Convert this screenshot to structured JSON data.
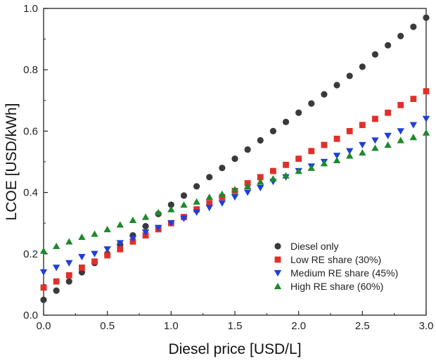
{
  "chart_data": {
    "type": "scatter",
    "xlabel": "Diesel price [USD/L]",
    "ylabel": "LCOE [USD/kWh]",
    "xlim": [
      0.0,
      3.0
    ],
    "ylim": [
      0.0,
      1.0
    ],
    "x_ticks": [
      "0.0",
      "0.5",
      "1.0",
      "1.5",
      "2.0",
      "2.5",
      "3.0"
    ],
    "y_ticks": [
      "0.0",
      "0.2",
      "0.4",
      "0.6",
      "0.8",
      "1.0"
    ],
    "grid": false,
    "legend_position": "bottom-right",
    "x": [
      0.0,
      0.1,
      0.2,
      0.3,
      0.4,
      0.5,
      0.6,
      0.7,
      0.8,
      0.9,
      1.0,
      1.1,
      1.2,
      1.3,
      1.4,
      1.5,
      1.6,
      1.7,
      1.8,
      1.9,
      2.0,
      2.1,
      2.2,
      2.3,
      2.4,
      2.5,
      2.6,
      2.7,
      2.8,
      2.9,
      3.0
    ],
    "series": [
      {
        "name": "Diesel only",
        "marker": "circle",
        "color": "#3a3a3a",
        "values": [
          0.05,
          0.08,
          0.11,
          0.14,
          0.17,
          0.2,
          0.23,
          0.26,
          0.29,
          0.33,
          0.36,
          0.39,
          0.42,
          0.45,
          0.48,
          0.51,
          0.54,
          0.57,
          0.6,
          0.63,
          0.66,
          0.69,
          0.72,
          0.75,
          0.78,
          0.81,
          0.85,
          0.88,
          0.91,
          0.94,
          0.97
        ]
      },
      {
        "name": "Low RE share (30%)",
        "marker": "square",
        "color": "#e0302a",
        "values": [
          0.09,
          0.11,
          0.13,
          0.155,
          0.175,
          0.195,
          0.215,
          0.24,
          0.26,
          0.28,
          0.3,
          0.32,
          0.345,
          0.365,
          0.385,
          0.405,
          0.43,
          0.45,
          0.47,
          0.49,
          0.51,
          0.535,
          0.555,
          0.575,
          0.6,
          0.62,
          0.64,
          0.66,
          0.685,
          0.705,
          0.73
        ]
      },
      {
        "name": "Medium RE share (45%)",
        "marker": "triangle-down",
        "color": "#1f3fd6",
        "values": [
          0.14,
          0.155,
          0.17,
          0.19,
          0.2,
          0.215,
          0.235,
          0.25,
          0.27,
          0.285,
          0.3,
          0.315,
          0.335,
          0.35,
          0.365,
          0.385,
          0.4,
          0.415,
          0.435,
          0.45,
          0.47,
          0.485,
          0.5,
          0.52,
          0.535,
          0.555,
          0.57,
          0.585,
          0.6,
          0.62,
          0.64
        ]
      },
      {
        "name": "High RE share (60%)",
        "marker": "triangle-up",
        "color": "#1c8a2c",
        "values": [
          0.21,
          0.225,
          0.24,
          0.255,
          0.265,
          0.28,
          0.295,
          0.31,
          0.32,
          0.335,
          0.345,
          0.36,
          0.37,
          0.385,
          0.395,
          0.41,
          0.42,
          0.435,
          0.445,
          0.455,
          0.47,
          0.48,
          0.495,
          0.505,
          0.52,
          0.53,
          0.545,
          0.555,
          0.57,
          0.58,
          0.595
        ]
      }
    ]
  }
}
